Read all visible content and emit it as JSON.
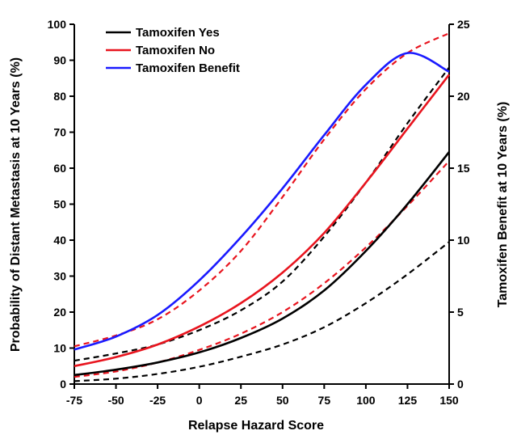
{
  "chart_data": {
    "type": "line",
    "title": "",
    "xlabel": "Relapse Hazard Score",
    "ylabel": "Probability of Distant Metastasis at 10 Years (%)",
    "y2label": "Tamoxifen Benefit at 10 Years (%)",
    "xlim": [
      -75,
      150
    ],
    "ylim": [
      0,
      100
    ],
    "y2lim": [
      0,
      25
    ],
    "x_ticks": [
      -75,
      -50,
      -25,
      0,
      25,
      50,
      75,
      100,
      125,
      150
    ],
    "y_ticks": [
      0,
      10,
      20,
      30,
      40,
      50,
      60,
      70,
      80,
      90,
      100
    ],
    "y2_ticks": [
      0,
      5,
      10,
      15,
      20,
      25
    ],
    "grid": false,
    "legend_position": "top-left",
    "x": [
      -75,
      -50,
      -25,
      0,
      25,
      50,
      75,
      100,
      125,
      150
    ],
    "series": [
      {
        "name": "Tamoxifen Yes",
        "color": "#000000",
        "axis": "left",
        "style": "solid",
        "values": [
          2.5,
          4.0,
          6.0,
          8.8,
          12.8,
          18.2,
          26.0,
          37.0,
          50.0,
          64.5
        ],
        "ci_lower": [
          0.8,
          1.5,
          2.8,
          4.8,
          7.6,
          11.0,
          15.8,
          22.5,
          30.5,
          39.5
        ],
        "ci_upper": [
          6.5,
          8.5,
          11.0,
          15.0,
          20.5,
          28.5,
          41.0,
          56.0,
          72.5,
          88.0
        ]
      },
      {
        "name": "Tamoxifen No",
        "color": "#e8141e",
        "axis": "left",
        "style": "solid",
        "values": [
          5.0,
          7.5,
          11.0,
          16.0,
          22.5,
          31.0,
          42.0,
          56.0,
          71.0,
          86.0
        ],
        "ci_lower": [
          2.0,
          3.5,
          6.0,
          9.5,
          14.0,
          20.0,
          28.0,
          38.0,
          49.5,
          62.0
        ],
        "ci_upper": [
          10.5,
          13.5,
          18.0,
          26.0,
          37.0,
          52.0,
          68.0,
          82.0,
          92.0,
          97.5
        ]
      },
      {
        "name": "Tamoxifen Benefit",
        "color": "#1a1aff",
        "axis": "right",
        "style": "solid",
        "values": [
          2.4,
          3.3,
          4.8,
          7.2,
          10.2,
          13.6,
          17.3,
          20.8,
          23.0,
          21.7
        ]
      }
    ]
  }
}
